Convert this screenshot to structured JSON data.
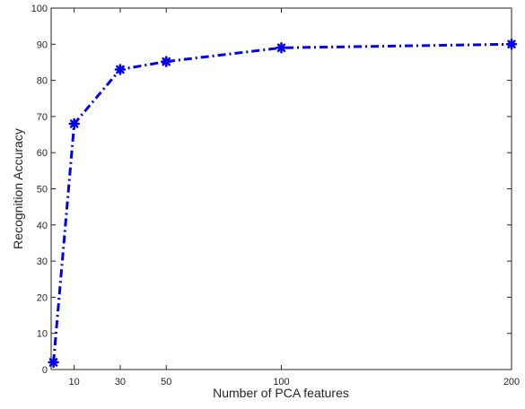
{
  "chart_data": {
    "type": "line",
    "title": "",
    "xlabel": "Number of PCA features",
    "ylabel": "Recognition Accuracy",
    "xlim": [
      0,
      200
    ],
    "ylim": [
      0,
      100
    ],
    "x_ticks": [
      10,
      30,
      50,
      100,
      200
    ],
    "y_ticks": [
      0,
      10,
      20,
      30,
      40,
      50,
      60,
      70,
      80,
      90,
      100
    ],
    "grid": false,
    "legend": "none",
    "series": [
      {
        "x": [
          1,
          10,
          30,
          50,
          100,
          200
        ],
        "y": [
          2,
          68,
          83,
          85.2,
          89,
          90
        ],
        "color": "#0000ee",
        "line_style": "dash-dot",
        "marker": "asterisk"
      }
    ]
  }
}
